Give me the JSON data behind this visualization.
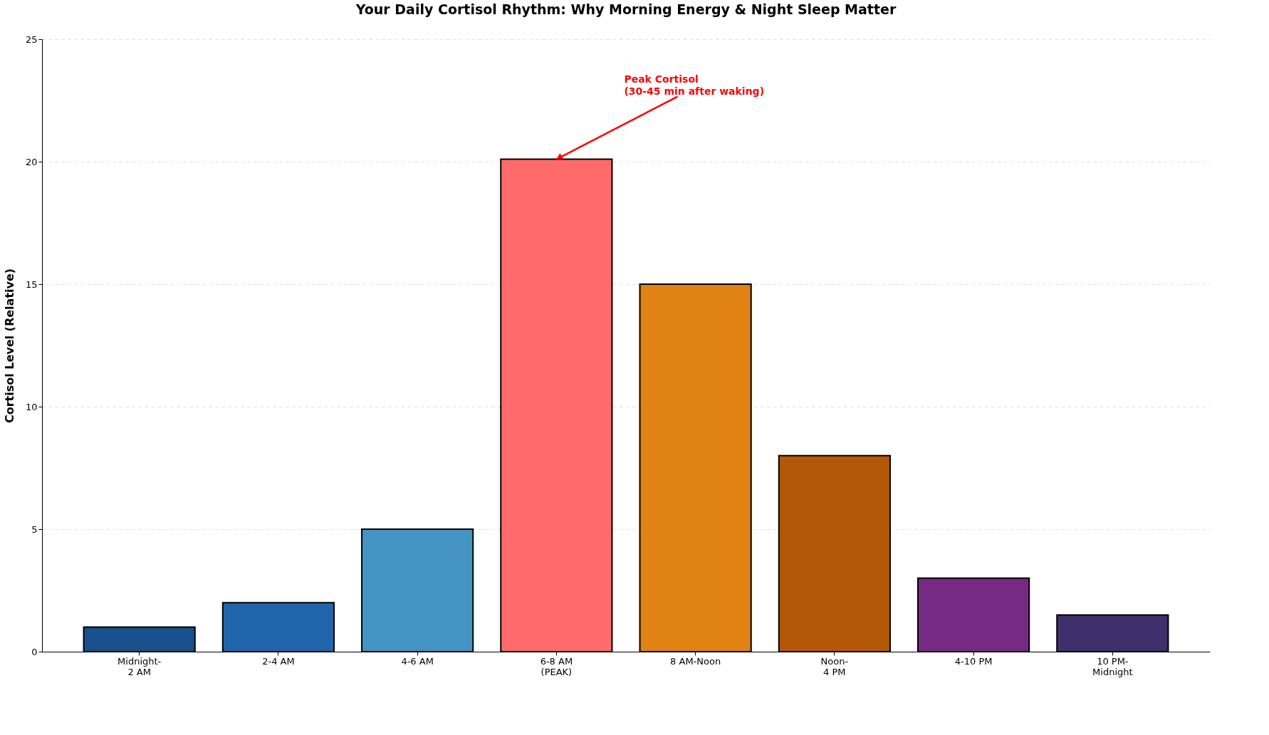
{
  "chart_data": {
    "type": "bar",
    "title": "Your Daily Cortisol Rhythm: Why Morning Energy & Night Sleep Matter",
    "ylabel": "Cortisol Level (Relative)",
    "categories": [
      "Midnight-\n2 AM",
      "2-4 AM",
      "4-6 AM",
      "6-8 AM\n(PEAK)",
      "8 AM-Noon",
      "Noon-\n4 PM",
      "4-10 PM",
      "10 PM-\nMidnight"
    ],
    "values": [
      1,
      2,
      5,
      20.1,
      15,
      8,
      3,
      1.5
    ],
    "colors": [
      "#1a508b",
      "#2166ac",
      "#4393c3",
      "#ff6b6b",
      "#e08214",
      "#b35806",
      "#762a83",
      "#3f2f6b"
    ],
    "ylim": [
      0,
      25
    ],
    "yticks": [
      0,
      5,
      10,
      15,
      20,
      25
    ],
    "grid": "y",
    "annotations": [
      {
        "text": "Peak Cortisol\n(30-45 min after waking)",
        "x": "6-8 AM\n(PEAK)",
        "y": 20.1
      }
    ]
  }
}
